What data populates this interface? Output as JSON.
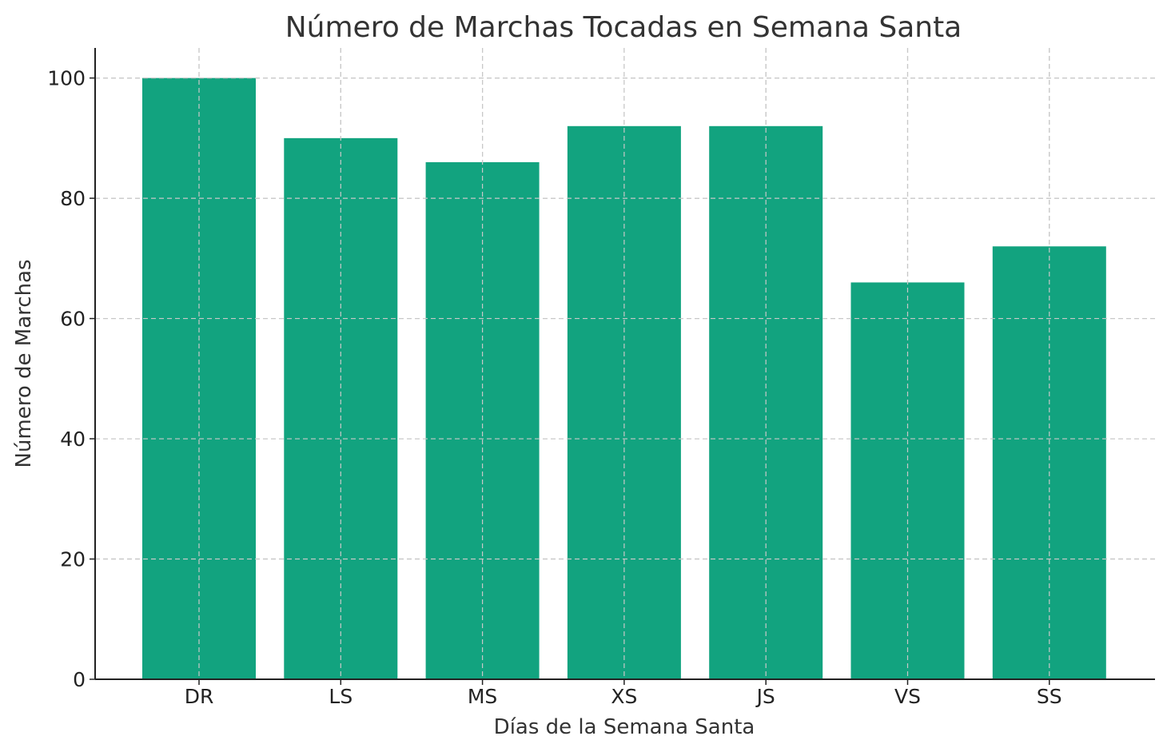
{
  "chart_data": {
    "type": "bar",
    "title": "Número de Marchas Tocadas en Semana Santa",
    "xlabel": "Días de la Semana Santa",
    "ylabel": "Número de Marchas",
    "categories": [
      "DR",
      "LS",
      "MS",
      "XS",
      "JS",
      "VS",
      "SS"
    ],
    "values": [
      100,
      90,
      86,
      92,
      92,
      66,
      72
    ],
    "ylim": [
      0,
      105
    ],
    "yticks": [
      0,
      20,
      40,
      60,
      80,
      100
    ],
    "grid": true,
    "bar_color": "#12a37f"
  }
}
